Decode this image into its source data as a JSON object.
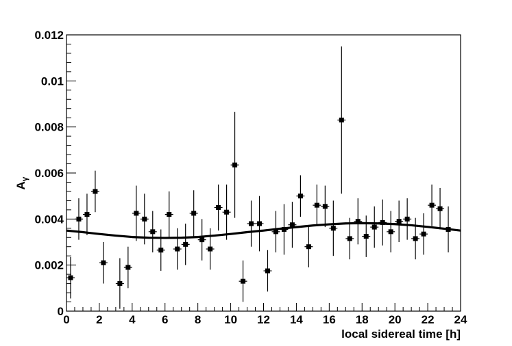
{
  "chart_data": {
    "type": "scatter",
    "xlabel": "local sidereal time [h]",
    "ylabel": "A",
    "ylabel_subscript": "γ",
    "xlim": [
      0,
      24
    ],
    "ylim": [
      0,
      0.012
    ],
    "x_ticks": [
      "0",
      "2",
      "4",
      "6",
      "8",
      "10",
      "12",
      "14",
      "16",
      "18",
      "20",
      "22",
      "24"
    ],
    "y_ticks": [
      "0",
      "0.002",
      "0.004",
      "0.006",
      "0.008",
      "0.01",
      "0.012"
    ],
    "series": [
      {
        "x": [
          0.25,
          0.75,
          1.25,
          1.75,
          2.25,
          3.25,
          3.75,
          4.25,
          4.75,
          5.25,
          5.75,
          6.25,
          6.75,
          7.25,
          7.75,
          8.25,
          8.75,
          9.25,
          9.75,
          10.25,
          10.75,
          11.25,
          11.75,
          12.25,
          12.75,
          13.25,
          13.75,
          14.25,
          14.75,
          15.25,
          15.75,
          16.25,
          16.75,
          17.25,
          17.75,
          18.25,
          18.75,
          19.25,
          19.75,
          20.25,
          20.75,
          21.25,
          21.75,
          22.25,
          22.75,
          23.25
        ],
        "y": [
          0.00145,
          0.004,
          0.0042,
          0.0052,
          0.0021,
          0.0012,
          0.0019,
          0.00425,
          0.004,
          0.00345,
          0.00265,
          0.0042,
          0.0027,
          0.0029,
          0.00425,
          0.0031,
          0.0027,
          0.0045,
          0.0043,
          0.00635,
          0.0013,
          0.0038,
          0.0038,
          0.00175,
          0.00345,
          0.00355,
          0.00375,
          0.005,
          0.0028,
          0.0046,
          0.00455,
          0.0036,
          0.0083,
          0.00315,
          0.0039,
          0.00325,
          0.00365,
          0.00385,
          0.00345,
          0.0039,
          0.004,
          0.00315,
          0.00335,
          0.0046,
          0.00445,
          0.00355
        ],
        "yerr": [
          0.0009,
          0.0009,
          0.0009,
          0.0009,
          0.0009,
          0.0011,
          0.0009,
          0.0012,
          0.0011,
          0.0009,
          0.0009,
          0.001,
          0.0009,
          0.0009,
          0.001,
          0.0009,
          0.0009,
          0.001,
          0.0012,
          0.0023,
          0.0009,
          0.001,
          0.0012,
          0.0009,
          0.0009,
          0.0011,
          0.001,
          0.0009,
          0.0009,
          0.0009,
          0.0009,
          0.0012,
          0.0032,
          0.0009,
          0.001,
          0.0009,
          0.0009,
          0.001,
          0.0009,
          0.0009,
          0.0009,
          0.0009,
          0.0009,
          0.0009,
          0.0009,
          0.001
        ]
      }
    ],
    "fit": {
      "x": [
        0,
        1,
        2,
        3,
        4,
        5,
        6,
        7,
        8,
        9,
        10,
        11,
        12,
        13,
        14,
        15,
        16,
        17,
        18,
        19,
        20,
        21,
        22,
        23,
        24
      ],
      "y": [
        0.0035,
        0.00343,
        0.00335,
        0.00328,
        0.00322,
        0.00319,
        0.00318,
        0.00319,
        0.00322,
        0.00328,
        0.00335,
        0.00343,
        0.0035,
        0.00358,
        0.00365,
        0.00372,
        0.00377,
        0.00381,
        0.00382,
        0.00381,
        0.00378,
        0.00373,
        0.00366,
        0.00358,
        0.0035
      ]
    },
    "grid": false,
    "legend": "none",
    "colors": {
      "marker": "#000000",
      "line": "#000000",
      "axis": "#000000"
    }
  }
}
